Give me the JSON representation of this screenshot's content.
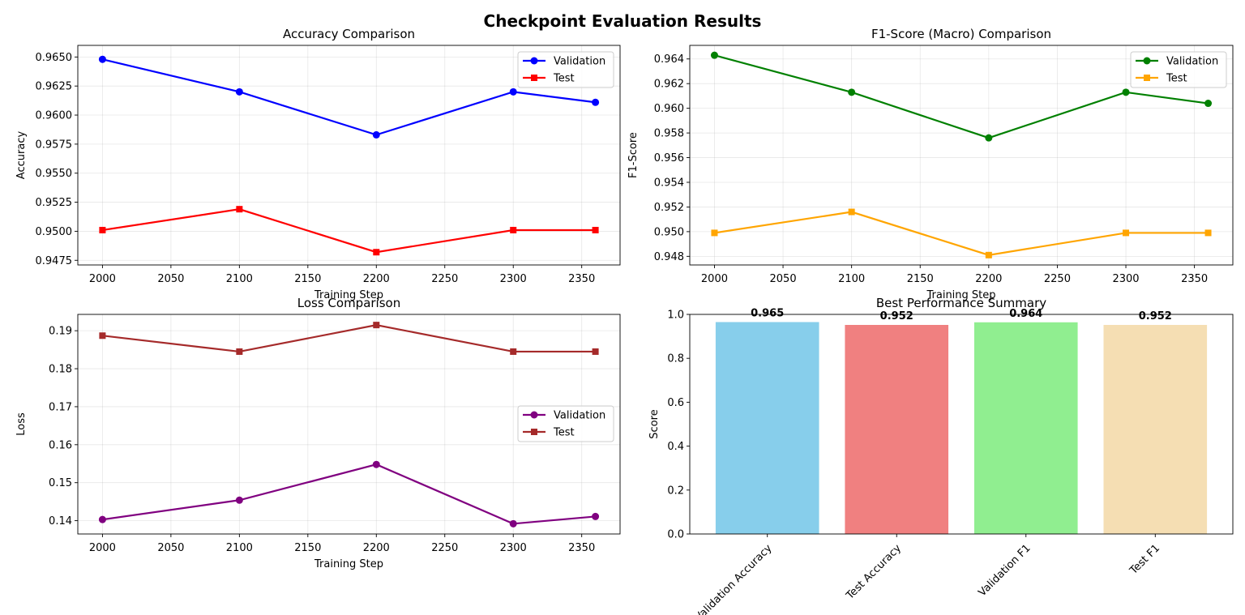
{
  "figure": {
    "title": "Checkpoint Evaluation Results"
  },
  "chart_data": [
    {
      "id": "accuracy",
      "type": "line",
      "title": "Accuracy Comparison",
      "xlabel": "Training Step",
      "ylabel": "Accuracy",
      "x": [
        2000,
        2100,
        2200,
        2300,
        2360
      ],
      "xticks": [
        2000,
        2050,
        2100,
        2150,
        2200,
        2250,
        2300,
        2350
      ],
      "xlim": [
        1982,
        2378
      ],
      "yticks": [
        0.9475,
        0.95,
        0.9525,
        0.955,
        0.9575,
        0.96,
        0.9625,
        0.965
      ],
      "ytick_labels": [
        "0.9475",
        "0.9500",
        "0.9525",
        "0.9550",
        "0.9575",
        "0.9600",
        "0.9625",
        "0.9650"
      ],
      "ylim": [
        0.9471,
        0.966
      ],
      "grid": true,
      "legend": "upper right",
      "series": [
        {
          "name": "Validation",
          "marker": "circle",
          "color": "#0000ff",
          "values": [
            0.9648,
            0.962,
            0.9583,
            0.962,
            0.9611
          ]
        },
        {
          "name": "Test",
          "marker": "square",
          "color": "#ff0000",
          "values": [
            0.9501,
            0.9519,
            0.9482,
            0.9501,
            0.9501
          ]
        }
      ]
    },
    {
      "id": "f1",
      "type": "line",
      "title": "F1-Score (Macro) Comparison",
      "xlabel": "Training Step",
      "ylabel": "F1-Score",
      "x": [
        2000,
        2100,
        2200,
        2300,
        2360
      ],
      "xticks": [
        2000,
        2050,
        2100,
        2150,
        2200,
        2250,
        2300,
        2350
      ],
      "xlim": [
        1982,
        2378
      ],
      "yticks": [
        0.948,
        0.95,
        0.952,
        0.954,
        0.956,
        0.958,
        0.96,
        0.962,
        0.964
      ],
      "ytick_labels": [
        "0.948",
        "0.950",
        "0.952",
        "0.954",
        "0.956",
        "0.958",
        "0.960",
        "0.962",
        "0.964"
      ],
      "ylim": [
        0.9473,
        0.9651
      ],
      "grid": true,
      "legend": "upper right",
      "series": [
        {
          "name": "Validation",
          "marker": "circle",
          "color": "#008000",
          "values": [
            0.9643,
            0.9613,
            0.9576,
            0.9613,
            0.9604
          ]
        },
        {
          "name": "Test",
          "marker": "square",
          "color": "#ffa500",
          "values": [
            0.9499,
            0.9516,
            0.9481,
            0.9499,
            0.9499
          ]
        }
      ]
    },
    {
      "id": "loss",
      "type": "line",
      "title": "Loss Comparison",
      "xlabel": "Training Step",
      "ylabel": "Loss",
      "x": [
        2000,
        2100,
        2200,
        2300,
        2360
      ],
      "xticks": [
        2000,
        2050,
        2100,
        2150,
        2200,
        2250,
        2300,
        2350
      ],
      "xlim": [
        1982,
        2378
      ],
      "yticks": [
        0.14,
        0.15,
        0.16,
        0.17,
        0.18,
        0.19
      ],
      "ytick_labels": [
        "0.14",
        "0.15",
        "0.16",
        "0.17",
        "0.18",
        "0.19"
      ],
      "ylim": [
        0.1365,
        0.1943
      ],
      "grid": true,
      "legend": "center right",
      "series": [
        {
          "name": "Validation",
          "marker": "circle",
          "color": "#800080",
          "values": [
            0.1403,
            0.1454,
            0.1548,
            0.1392,
            0.1411
          ]
        },
        {
          "name": "Test",
          "marker": "square",
          "color": "#a52a2a",
          "values": [
            0.1887,
            0.1845,
            0.1915,
            0.1845,
            0.1845
          ]
        }
      ]
    },
    {
      "id": "best",
      "type": "bar",
      "title": "Best Performance Summary",
      "ylabel": "Score",
      "categories": [
        "Validation Accuracy",
        "Test Accuracy",
        "Validation F1",
        "Test F1"
      ],
      "values": [
        0.965,
        0.952,
        0.964,
        0.952
      ],
      "value_labels": [
        "0.965",
        "0.952",
        "0.964",
        "0.952"
      ],
      "colors": [
        "#87ceeb",
        "#f08080",
        "#90ee90",
        "#f5deb3"
      ],
      "yticks": [
        0.0,
        0.2,
        0.4,
        0.6,
        0.8,
        1.0
      ],
      "ytick_labels": [
        "0.0",
        "0.2",
        "0.4",
        "0.6",
        "0.8",
        "1.0"
      ],
      "ylim": [
        0,
        1.0
      ],
      "xtick_rotation": 45
    }
  ]
}
